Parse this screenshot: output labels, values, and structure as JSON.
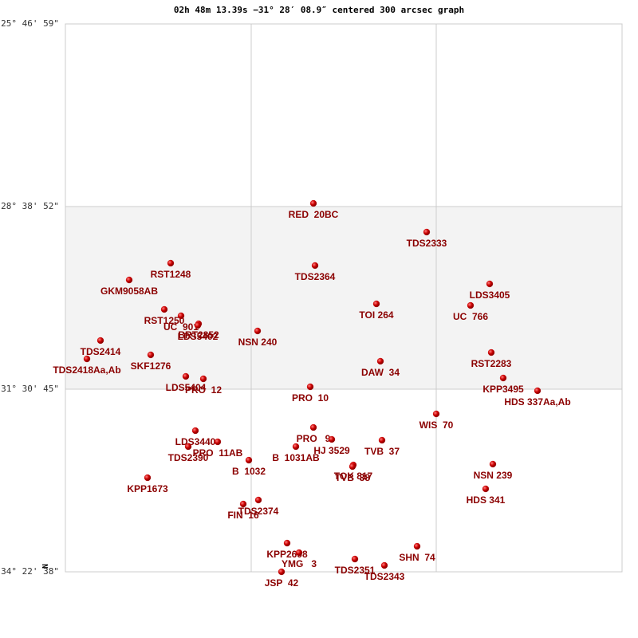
{
  "chart_data": {
    "type": "scatter",
    "title": "02h 48m 13.39s −31° 28′ 08.9″ centered 300 arcsec graph",
    "north_marker": "N",
    "xlim": [
      0,
      698
    ],
    "xticks": [
      233,
      465
    ],
    "ylim": [
      -34.3772,
      -25.7831
    ],
    "yticks": [
      {
        "value": -25.7831,
        "label": "-25° 46' 59\""
      },
      {
        "value": -28.6478,
        "label": "-28° 38' 52\""
      },
      {
        "value": -31.5125,
        "label": "-31° 30' 45\""
      },
      {
        "value": -34.3772,
        "label": "-34° 22' 38\""
      }
    ],
    "color": "#cc0000",
    "label_color": "#8b0000",
    "grid": true,
    "labels": [
      "RED  20BC",
      "TDS2333",
      "RST1248",
      "TDS2364",
      "GKM9058AB",
      "LDS3405",
      "TOI 264",
      "UC  766",
      "RST1250",
      "UC  901",
      "BRT2852",
      "LDS5402",
      "NSN 240",
      "TDS2414",
      "RST2283",
      "SKF1276",
      "TDS2418Aa,Ab",
      "DAW  34",
      "LDS5404",
      "PRO  12",
      "KPP3495",
      "PRO  10",
      "HDS 337Aa,Ab",
      "WIS  70",
      "LDS3440",
      "PRO   9",
      "TVB  37",
      "PRO  11AB",
      "HJ 3529",
      "TDS2390",
      "B  1031AB",
      "TOK 817",
      "TVB  38",
      "B  1032",
      "NSN 239",
      "KPP1673",
      "HDS 341",
      "TDS2374",
      "FIN  16",
      "KPP2698",
      "SHN  74",
      "YMG   3",
      "TDS2351",
      "TDS2343",
      "JSP  42"
    ],
    "x": [
      311,
      453,
      132,
      313,
      80,
      532,
      390,
      508,
      124,
      145,
      167,
      166,
      241,
      44,
      534,
      107,
      27,
      395,
      151,
      173,
      549,
      307,
      592,
      465,
      163,
      311,
      397,
      191,
      334,
      154,
      289,
      361,
      360,
      230,
      536,
      103,
      527,
      242,
      223,
      278,
      441,
      293,
      363,
      400,
      271
    ],
    "values": [
      -28.598,
      -29.048,
      -29.536,
      -29.573,
      -29.799,
      -29.861,
      -30.174,
      -30.199,
      -30.261,
      -30.361,
      -30.487,
      -30.512,
      -30.599,
      -30.749,
      -30.937,
      -30.974,
      -31.037,
      -31.074,
      -31.312,
      -31.35,
      -31.337,
      -31.475,
      -31.537,
      -31.9,
      -32.163,
      -32.113,
      -32.313,
      -32.338,
      -32.3,
      -32.413,
      -32.413,
      -32.701,
      -32.726,
      -32.626,
      -32.688,
      -32.901,
      -33.076,
      -33.251,
      -33.314,
      -33.927,
      -33.977,
      -34.077,
      -34.177,
      -34.277,
      -34.377
    ]
  }
}
